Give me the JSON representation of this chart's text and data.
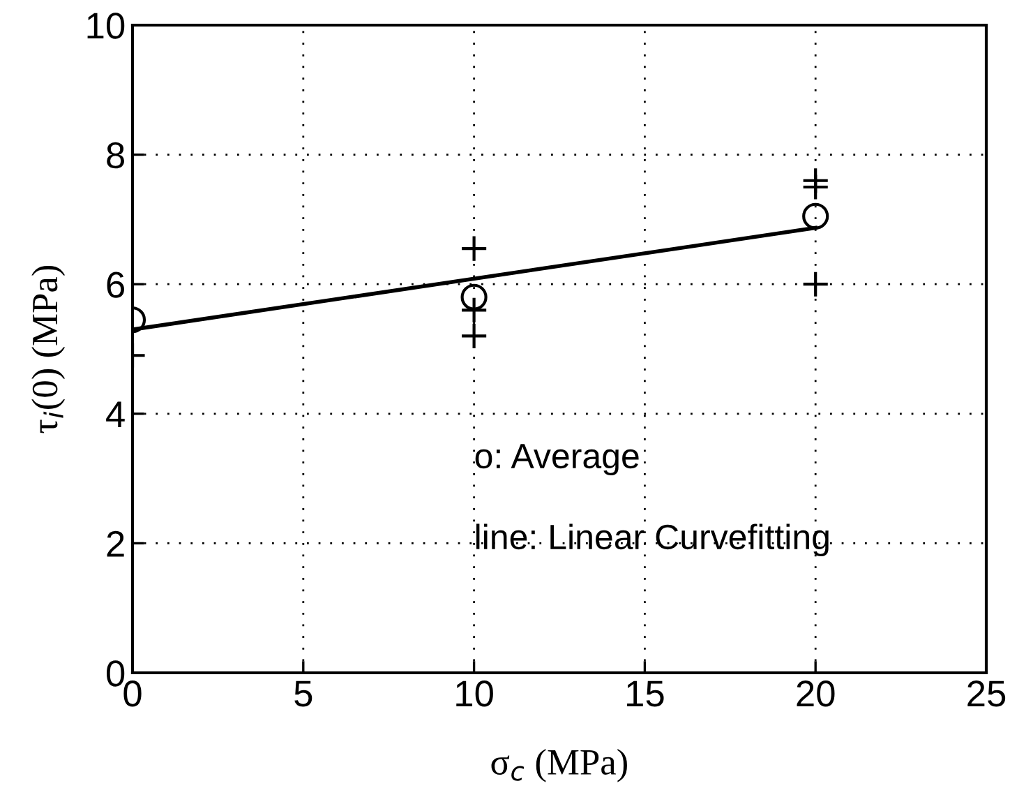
{
  "chart_data": {
    "type": "scatter",
    "xlabel": "σ$_{c}$ (MPa)",
    "ylabel": "τ$_{i}$(0) (MPa)",
    "xlim": [
      0,
      25
    ],
    "ylim": [
      0,
      10
    ],
    "xticks": [
      0,
      5,
      10,
      15,
      20,
      25
    ],
    "yticks": [
      0,
      2,
      4,
      6,
      8,
      10
    ],
    "grid": true,
    "series": [
      {
        "marker": "cross",
        "color": "#000000",
        "x": [
          0,
          10,
          10,
          10,
          20,
          20,
          20
        ],
        "values": [
          4.9,
          6.55,
          5.6,
          5.2,
          7.6,
          7.5,
          6.0
        ]
      },
      {
        "marker": "circle",
        "color": "#000000",
        "x": [
          0,
          10,
          20
        ],
        "values": [
          5.45,
          5.8,
          7.05
        ]
      },
      {
        "type": "line",
        "marker": "none",
        "line_style": "solid",
        "color": "#000000",
        "x": [
          0,
          20
        ],
        "values": [
          5.3,
          6.87
        ]
      }
    ],
    "annotations": [
      "o: Average",
      "line: Linear Curvefitting"
    ]
  }
}
